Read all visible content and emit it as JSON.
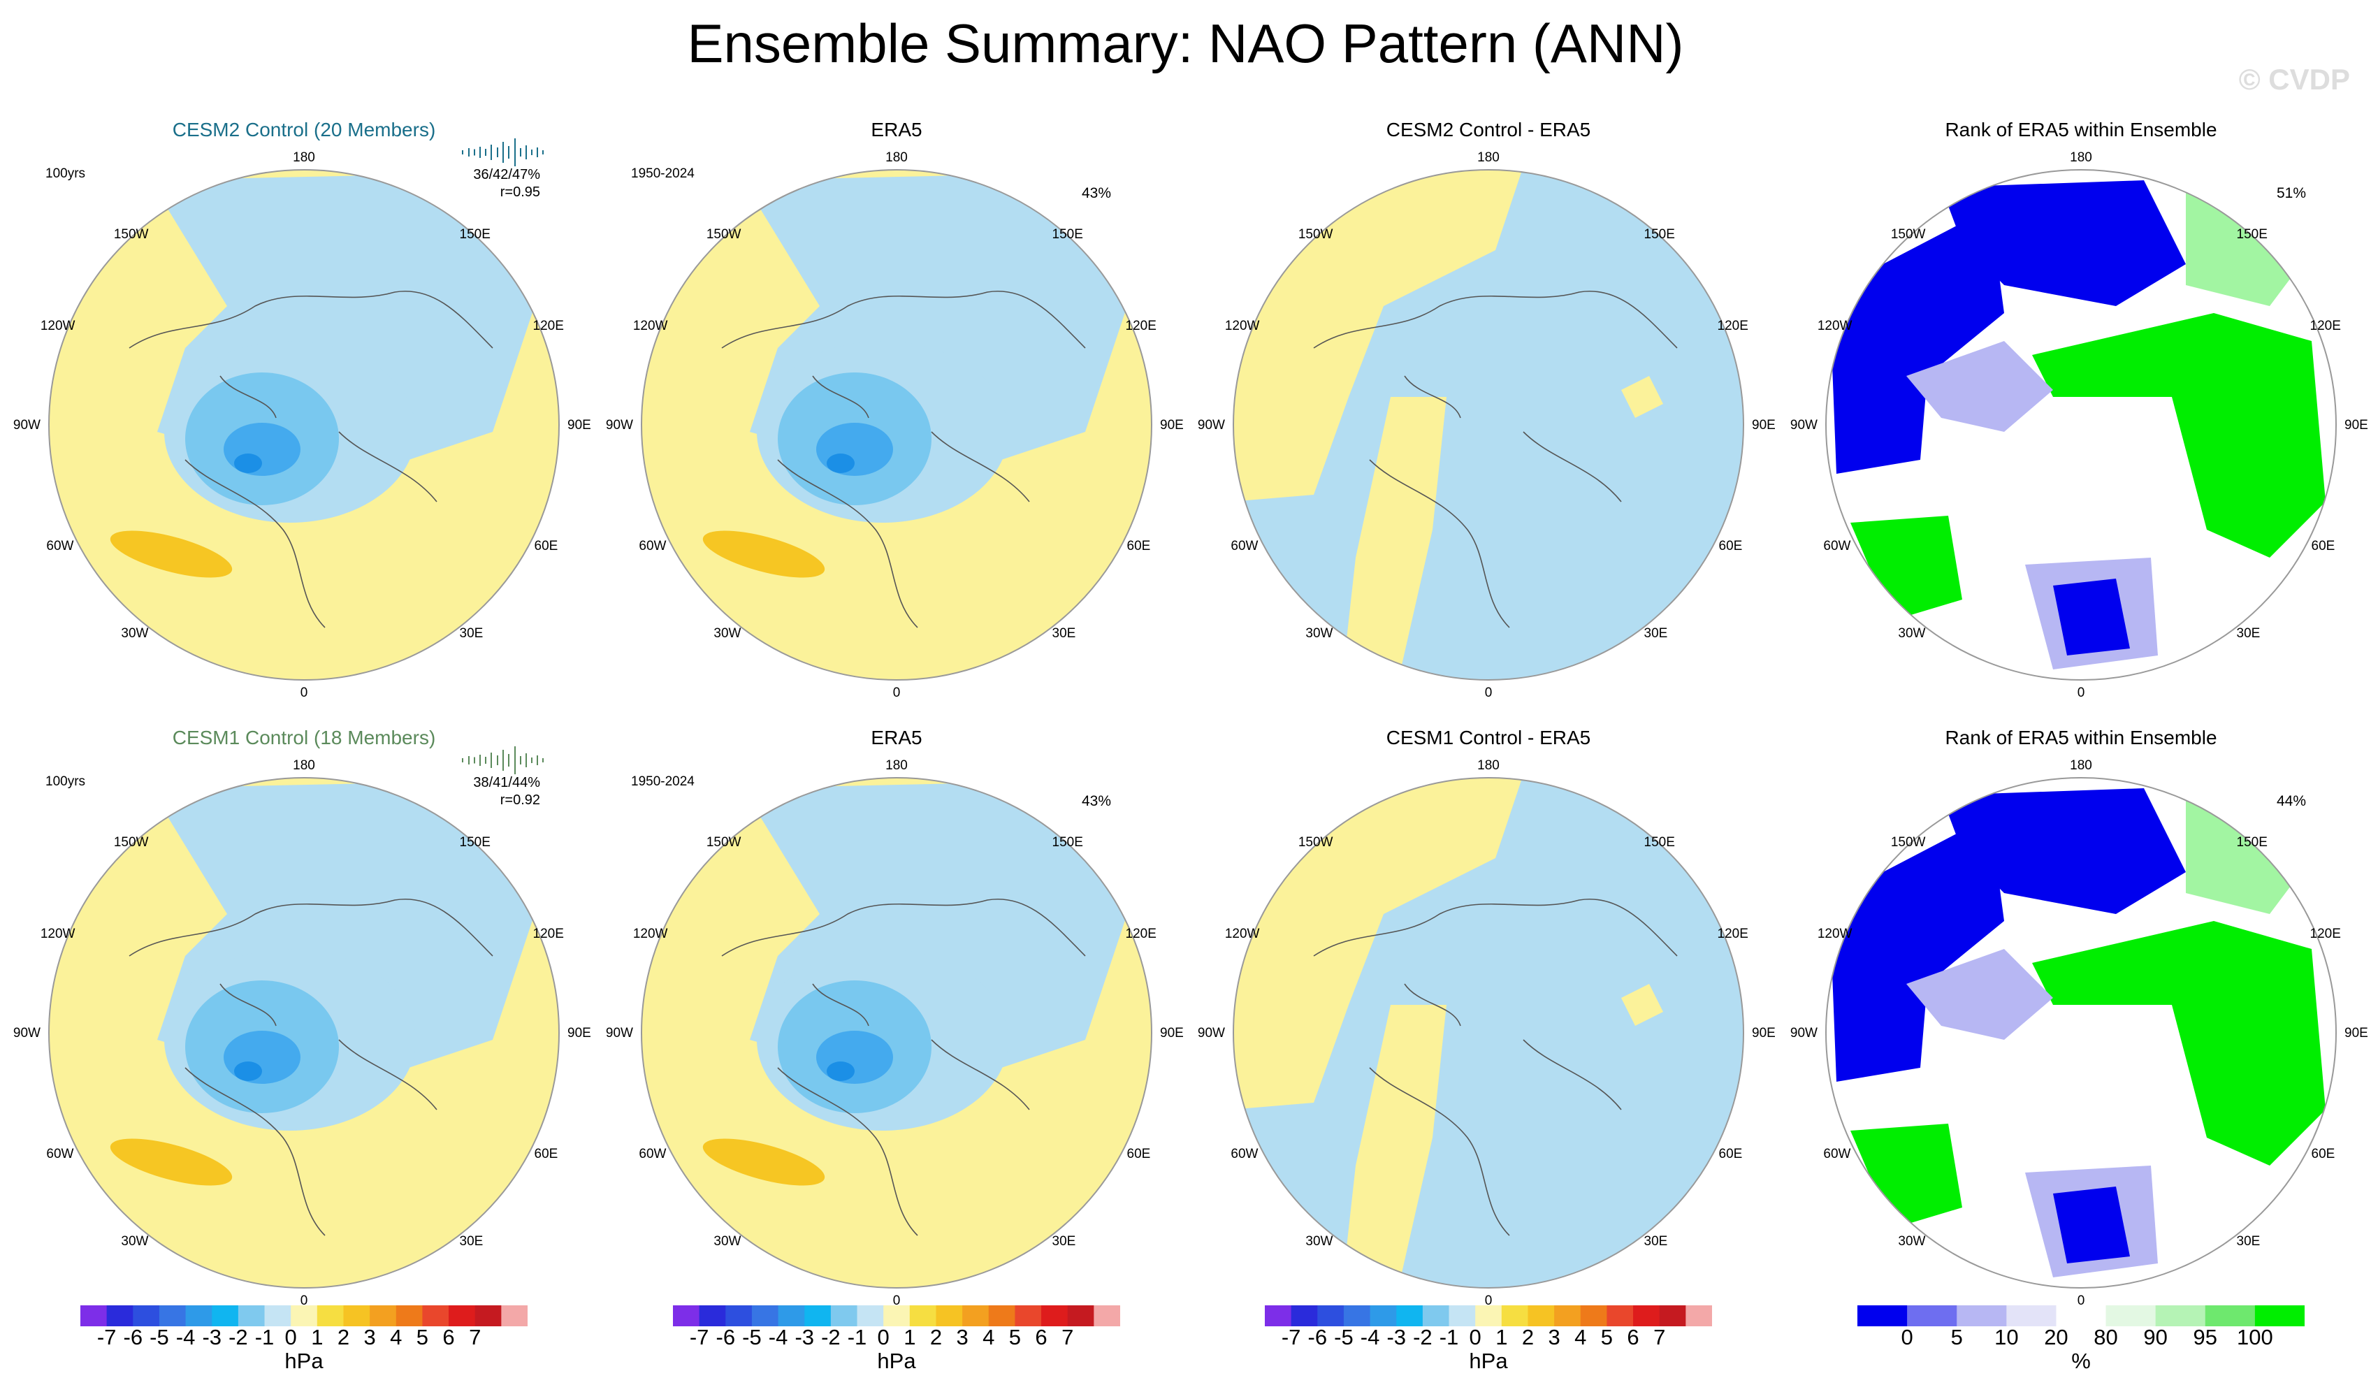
{
  "title": "Ensemble Summary: NAO Pattern (ANN)",
  "watermark": "© CVDP",
  "colors": {
    "ocean_blue": "#b3ddf2",
    "light_yellow": "#fbf29a",
    "blue2": "#79c8ef",
    "blue3": "#44aaee",
    "blue4": "#1b8fe6",
    "orange": "#f6c623",
    "rank_blue": "#0000ee",
    "rank_midblue": "#6e6ef0",
    "rank_lavender": "#b7b7f3",
    "rank_green": "#00ee00",
    "rank_lightgreen": "#a2f5a2"
  },
  "panels": [
    {
      "id": "cesm2",
      "title": "CESM2 Control (20 Members)",
      "title_color": "#1a6f8a",
      "left_label": "100yrs",
      "stat1": "36/42/47%",
      "stat2": "r=0.95",
      "type": "model",
      "spark_color": "#1a6f8a"
    },
    {
      "id": "era5a",
      "title": "ERA5",
      "left_label": "1950-2024",
      "pct": "43%",
      "type": "obs"
    },
    {
      "id": "diff2",
      "title": "CESM2 Control - ERA5",
      "type": "diff"
    },
    {
      "id": "rank2",
      "title": "Rank of ERA5 within Ensemble",
      "pct": "51%",
      "type": "rank"
    },
    {
      "id": "cesm1",
      "title": "CESM1 Control (18 Members)",
      "title_color": "#5b8a5b",
      "left_label": "100yrs",
      "stat1": "38/41/44%",
      "stat2": "r=0.92",
      "type": "model",
      "spark_color": "#5b8a5b"
    },
    {
      "id": "era5b",
      "title": "ERA5",
      "left_label": "1950-2024",
      "pct": "43%",
      "type": "obs"
    },
    {
      "id": "diff1",
      "title": "CESM1 Control - ERA5",
      "type": "diff"
    },
    {
      "id": "rank1",
      "title": "Rank of ERA5 within Ensemble",
      "pct": "44%",
      "type": "rank"
    }
  ],
  "map_labels": {
    "top": "180",
    "bottom": "0",
    "l150": "150W",
    "r150": "150E",
    "l120": "120W",
    "r120": "120E",
    "l90": "90W",
    "r90": "90E",
    "l60": "60W",
    "r60": "60E",
    "l30": "30W",
    "r30": "30E"
  },
  "colorbars": {
    "hpa": {
      "ticks": [
        "-7",
        "-6",
        "-5",
        "-4",
        "-3",
        "-2",
        "-1",
        "0",
        "1",
        "2",
        "3",
        "4",
        "5",
        "6",
        "7"
      ],
      "unit": "hPa",
      "colors": [
        "#7d2ee8",
        "#2a2bdb",
        "#2d4fdf",
        "#3775e4",
        "#2e9ae8",
        "#10b5f0",
        "#7fc9ee",
        "#c5e4f4",
        "#fbf5b4",
        "#f6de41",
        "#f6c323",
        "#f3a020",
        "#ee7a1a",
        "#e9472c",
        "#de1c1c",
        "#c51a20",
        "#f3a8a8"
      ]
    },
    "rank": {
      "ticks": [
        "0",
        "5",
        "10",
        "20",
        "80",
        "90",
        "95",
        "100"
      ],
      "unit": "%",
      "colors": [
        "#0000ee",
        "#6e6ef0",
        "#b7b7f3",
        "#e3e3f8",
        "#ffffff",
        "#e3f8e3",
        "#b5f3b5",
        "#6ee86e",
        "#00ee00"
      ]
    }
  }
}
